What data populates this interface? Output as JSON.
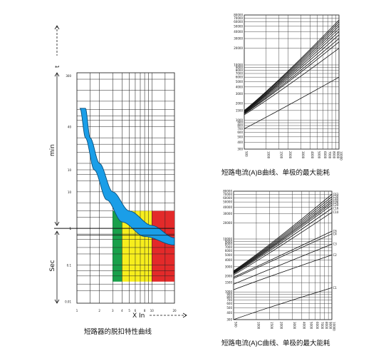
{
  "captions": {
    "trip_curve": "短路器的脱扣特性曲线",
    "b_curve": "短路电流(A)B曲线、单极的最大能耗",
    "c_curve": "短路电流(A)C曲线、单极的最大能耗"
  },
  "chart_data": [
    {
      "type": "area",
      "title": "短路器的脱扣特性曲线",
      "xlabel": "X  In",
      "ylabel_upper": "min",
      "ylabel_lower": "Sec",
      "y_arrow_label": "t",
      "x_scale": "log",
      "y_scale": "log",
      "x_ticks": [
        "1",
        "2",
        "3",
        "4",
        "5",
        "6",
        "8",
        "10",
        "20"
      ],
      "y_ticks_min": [
        "300",
        "40",
        "10",
        "1"
      ],
      "y_ticks_sec": [
        "10",
        "1",
        "0.1",
        "0.01"
      ],
      "xlim": [
        1,
        20
      ],
      "band": {
        "color": "#1a9ee8",
        "description": "trip zone",
        "upper": [
          [
            1.3,
            1920
          ],
          [
            1.5,
            300
          ],
          [
            2,
            60
          ],
          [
            3,
            10
          ],
          [
            5,
            3
          ],
          [
            10,
            1.2
          ],
          [
            20,
            0.55
          ]
        ],
        "lower": [
          [
            1.1,
            1920
          ],
          [
            1.3,
            300
          ],
          [
            1.7,
            40
          ],
          [
            2.5,
            6
          ],
          [
            4,
            1.5
          ],
          [
            8,
            0.6
          ],
          [
            20,
            0.35
          ]
        ]
      },
      "zones": [
        {
          "color": "#19a04b",
          "x": [
            3,
            4
          ]
        },
        {
          "color": "#f7ee1d",
          "x": [
            4,
            10
          ]
        },
        {
          "color": "#e32a2a",
          "x": [
            10,
            20
          ]
        }
      ],
      "zone_y_range": [
        0.035,
        3
      ]
    },
    {
      "type": "line",
      "title": "短路电流(A)B曲线、单极的最大能耗",
      "x_scale": "log",
      "y_scale": "log",
      "x_ticks": [
        "500",
        "1000",
        "1500",
        "2000",
        "3000",
        "4000",
        "5000",
        "6000",
        "7000",
        "8000",
        "9000",
        "10000"
      ],
      "y_ticks": [
        "80000",
        "70000",
        "60000",
        "50000",
        "40000",
        "30000",
        "20000",
        "10000",
        "9000",
        "8000",
        "7000",
        "6000",
        "5000",
        "4000",
        "3000",
        "2000",
        "1500",
        "1000",
        "900",
        "800",
        "700",
        "600",
        "500",
        "400",
        "300"
      ],
      "xlim": [
        500,
        10000
      ],
      "ylim": [
        300,
        80000
      ],
      "series": [
        {
          "values": [
            [
              500,
              1500
            ],
            [
              10000,
              65000
            ]
          ]
        },
        {
          "values": [
            [
              500,
              1480
            ],
            [
              10000,
              60000
            ]
          ]
        },
        {
          "values": [
            [
              500,
              1450
            ],
            [
              10000,
              55000
            ]
          ]
        },
        {
          "values": [
            [
              500,
              1420
            ],
            [
              10000,
              50000
            ]
          ]
        },
        {
          "values": [
            [
              500,
              1400
            ],
            [
              10000,
              45000
            ]
          ]
        },
        {
          "values": [
            [
              500,
              1380
            ],
            [
              10000,
              40000
            ]
          ]
        },
        {
          "values": [
            [
              500,
              1350
            ],
            [
              10000,
              35000
            ]
          ]
        },
        {
          "values": [
            [
              500,
              1320
            ],
            [
              10000,
              30000
            ]
          ]
        },
        {
          "values": [
            [
              500,
              1300
            ],
            [
              10000,
              26000
            ]
          ]
        },
        {
          "values": [
            [
              500,
              1250
            ],
            [
              10000,
              20000
            ]
          ]
        },
        {
          "values": [
            [
              500,
              700
            ],
            [
              10000,
              6000
            ]
          ]
        }
      ]
    },
    {
      "type": "line",
      "title": "短路电流(A)C曲线、单极的最大能耗",
      "x_scale": "log",
      "y_scale": "log",
      "x_ticks": [
        "500",
        "1000",
        "1500",
        "2000",
        "3000",
        "4000",
        "5000",
        "6000",
        "7000",
        "8000",
        "9000",
        "10000"
      ],
      "y_ticks": [
        "80000",
        "70000",
        "60000",
        "50000",
        "40000",
        "30000",
        "20000",
        "10000",
        "9000",
        "8000",
        "7000",
        "6000",
        "5000",
        "4000",
        "3000",
        "2000",
        "1500",
        "1000",
        "900",
        "800",
        "700",
        "600",
        "500",
        "400",
        "300"
      ],
      "xlim": [
        500,
        10000
      ],
      "ylim": [
        300,
        80000
      ],
      "series": [
        {
          "name": "C63",
          "values": [
            [
              500,
              2500
            ],
            [
              10000,
              70000
            ]
          ]
        },
        {
          "name": "C50",
          "values": [
            [
              500,
              2450
            ],
            [
              10000,
              63000
            ]
          ]
        },
        {
          "name": "C40",
          "values": [
            [
              500,
              2400
            ],
            [
              10000,
              57000
            ]
          ]
        },
        {
          "name": "C32",
          "values": [
            [
              500,
              2350
            ],
            [
              10000,
              52000
            ]
          ]
        },
        {
          "name": "C25",
          "values": [
            [
              500,
              2300
            ],
            [
              10000,
              48000
            ]
          ]
        },
        {
          "name": "C20",
          "values": [
            [
              500,
              2250
            ],
            [
              10000,
              44000
            ]
          ]
        },
        {
          "name": "C16",
          "values": [
            [
              500,
              2200
            ],
            [
              10000,
              38000
            ]
          ]
        },
        {
          "name": "C10",
          "values": [
            [
              500,
              2100
            ],
            [
              10000,
              32000
            ]
          ]
        },
        {
          "name": "C6",
          "values": [
            [
              500,
              1900
            ],
            [
              10000,
              14000
            ]
          ]
        },
        {
          "name": "C4",
          "values": [
            [
              500,
              1800
            ],
            [
              10000,
              12500
            ]
          ]
        },
        {
          "name": "C3",
          "values": [
            [
              500,
              1400
            ],
            [
              10000,
              8000
            ]
          ]
        },
        {
          "name": "C2",
          "values": [
            [
              500,
              1100
            ],
            [
              10000,
              5000
            ]
          ]
        },
        {
          "name": "C1",
          "values": [
            [
              500,
              300
            ],
            [
              10000,
              1200
            ]
          ]
        }
      ]
    }
  ]
}
